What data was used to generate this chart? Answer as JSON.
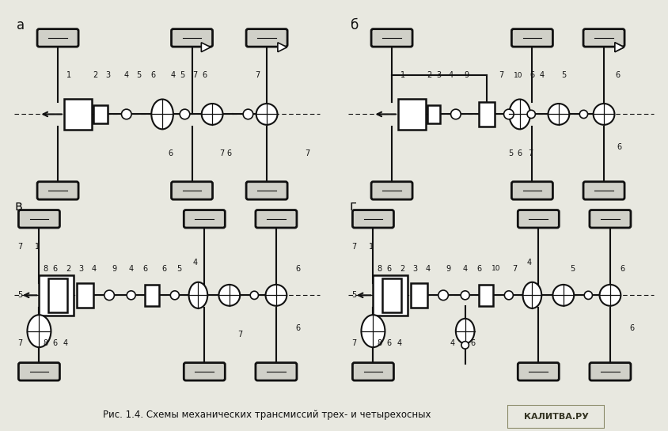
{
  "title": "Рис. 1.4. Схемы механических трансмиссий трех- и четырехосных",
  "bg_color": "#e8e8e0",
  "line_color": "#111111",
  "watermark": "КАЛИТВА.РУ",
  "watermark_bg": "#d4c9a0",
  "panels": [
    "а",
    "б",
    "в",
    "г"
  ]
}
